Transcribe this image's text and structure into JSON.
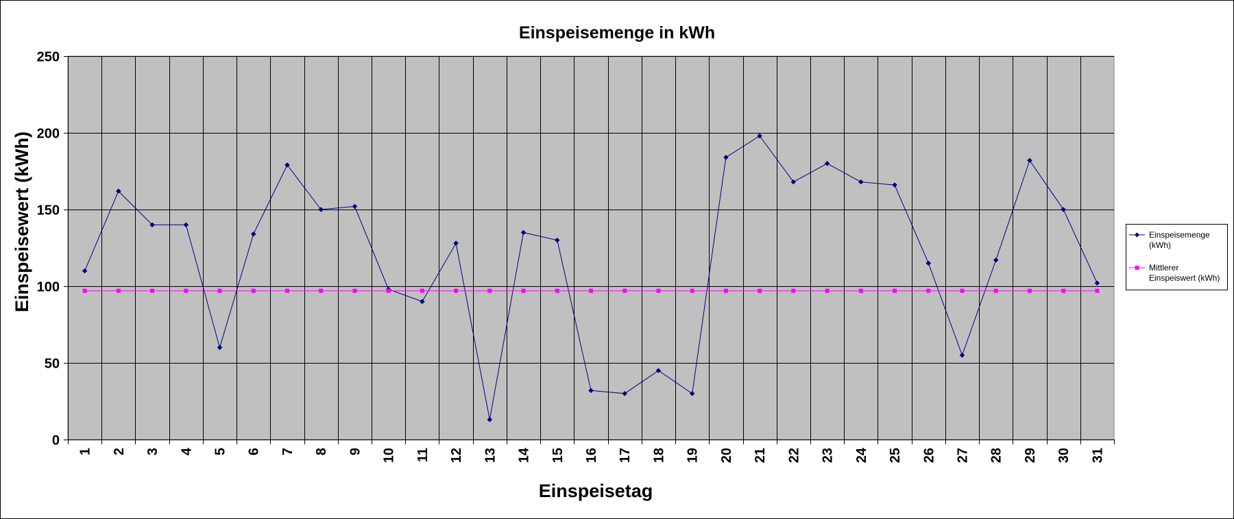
{
  "chart_data": {
    "type": "line",
    "title": "Einspeisemenge in kWh",
    "xlabel": "Einspeisetag",
    "ylabel": "Einspeisewert  (kWh)",
    "ylim": [
      0,
      250
    ],
    "yticks": [
      "0",
      "50",
      "100",
      "150",
      "200",
      "250"
    ],
    "categories": [
      "1",
      "2",
      "3",
      "4",
      "5",
      "6",
      "7",
      "8",
      "9",
      "10",
      "11",
      "12",
      "13",
      "14",
      "15",
      "16",
      "17",
      "18",
      "19",
      "20",
      "21",
      "22",
      "23",
      "24",
      "25",
      "26",
      "27",
      "28",
      "29",
      "30",
      "31"
    ],
    "grid": true,
    "legend_position": "right",
    "plot_background": "#c0c0c0",
    "series": [
      {
        "name": "Einspeisemenge (kWh)",
        "legend_lines": [
          "Einspeisemenge",
          "(kWh)"
        ],
        "color": "#000080",
        "marker": "diamond",
        "values": [
          110,
          162,
          140,
          140,
          60,
          134,
          179,
          150,
          152,
          98,
          90,
          128,
          13,
          135,
          130,
          32,
          30,
          45,
          30,
          184,
          198,
          168,
          180,
          168,
          166,
          115,
          55,
          117,
          182,
          150,
          102
        ]
      },
      {
        "name": "Mittlerer Einspeiswert (kWh)",
        "legend_lines": [
          "Mittlerer",
          "Einspeiswert (kWh)"
        ],
        "color": "#ff00ff",
        "marker": "square",
        "values": [
          97,
          97,
          97,
          97,
          97,
          97,
          97,
          97,
          97,
          97,
          97,
          97,
          97,
          97,
          97,
          97,
          97,
          97,
          97,
          97,
          97,
          97,
          97,
          97,
          97,
          97,
          97,
          97,
          97,
          97,
          97
        ]
      }
    ]
  }
}
